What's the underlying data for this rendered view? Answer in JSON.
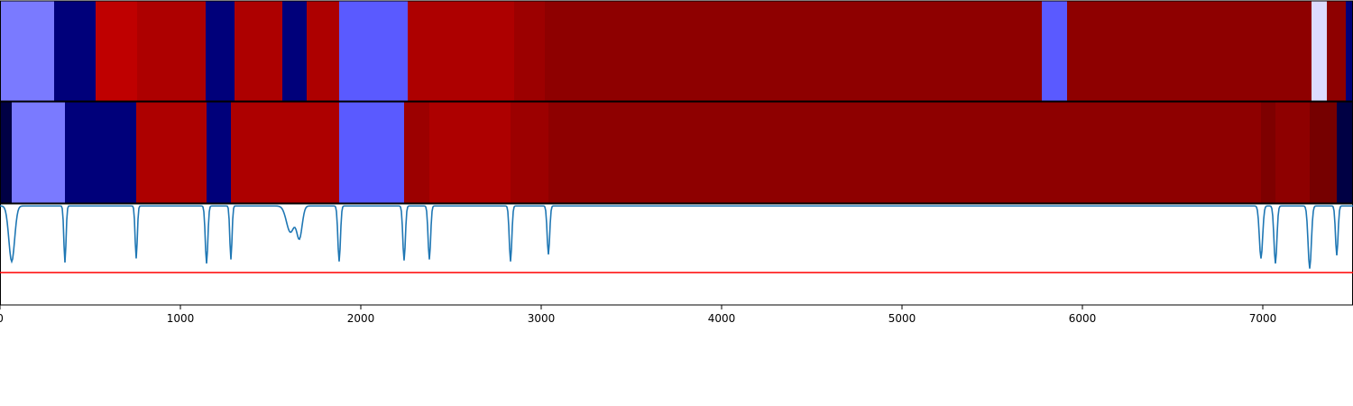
{
  "chart_data": {
    "type": "heatmap",
    "title": "",
    "xlabel": "",
    "ylabel": "",
    "xlim": [
      0,
      7500
    ],
    "xticks": [
      "0",
      "1000",
      "2000",
      "3000",
      "4000",
      "5000",
      "6000",
      "7000"
    ],
    "grid": false,
    "legend": "none",
    "tracks": [
      {
        "segments": [
          {
            "start": 0,
            "end": 300,
            "color": "#7a7aff"
          },
          {
            "start": 300,
            "end": 530,
            "color": "#00007a"
          },
          {
            "start": 530,
            "end": 760,
            "color": "#bf0000"
          },
          {
            "start": 760,
            "end": 1140,
            "color": "#ad0000"
          },
          {
            "start": 1140,
            "end": 1300,
            "color": "#00007a"
          },
          {
            "start": 1300,
            "end": 1565,
            "color": "#ad0000"
          },
          {
            "start": 1565,
            "end": 1700,
            "color": "#00007a"
          },
          {
            "start": 1700,
            "end": 1880,
            "color": "#ad0000"
          },
          {
            "start": 1880,
            "end": 2260,
            "color": "#5a5aff"
          },
          {
            "start": 2260,
            "end": 2850,
            "color": "#ad0000"
          },
          {
            "start": 2850,
            "end": 3020,
            "color": "#9c0000"
          },
          {
            "start": 3020,
            "end": 5775,
            "color": "#8e0000"
          },
          {
            "start": 5775,
            "end": 5915,
            "color": "#5a5aff"
          },
          {
            "start": 5915,
            "end": 7270,
            "color": "#8e0000"
          },
          {
            "start": 7270,
            "end": 7355,
            "color": "#dcdcff"
          },
          {
            "start": 7355,
            "end": 7460,
            "color": "#8e0000"
          },
          {
            "start": 7460,
            "end": 7500,
            "color": "#00007a"
          }
        ]
      },
      {
        "segments": [
          {
            "start": 0,
            "end": 65,
            "color": "#000044"
          },
          {
            "start": 65,
            "end": 360,
            "color": "#7a7aff"
          },
          {
            "start": 360,
            "end": 755,
            "color": "#00007a"
          },
          {
            "start": 755,
            "end": 1145,
            "color": "#ad0000"
          },
          {
            "start": 1145,
            "end": 1280,
            "color": "#00007a"
          },
          {
            "start": 1280,
            "end": 1880,
            "color": "#ad0000"
          },
          {
            "start": 1880,
            "end": 2240,
            "color": "#5a5aff"
          },
          {
            "start": 2240,
            "end": 2380,
            "color": "#9c0000"
          },
          {
            "start": 2380,
            "end": 2830,
            "color": "#ad0000"
          },
          {
            "start": 2830,
            "end": 3040,
            "color": "#9c0000"
          },
          {
            "start": 3040,
            "end": 6990,
            "color": "#8e0000"
          },
          {
            "start": 6990,
            "end": 7070,
            "color": "#7e0000"
          },
          {
            "start": 7070,
            "end": 7260,
            "color": "#8e0000"
          },
          {
            "start": 7260,
            "end": 7410,
            "color": "#760000"
          },
          {
            "start": 7410,
            "end": 7500,
            "color": "#000044"
          }
        ]
      }
    ],
    "line_series": {
      "color": "#1f77b4",
      "baseline": 0.98,
      "dips": [
        {
          "x": 65,
          "depth": 0.55,
          "width": 16
        },
        {
          "x": 360,
          "depth": 0.56,
          "width": 6
        },
        {
          "x": 755,
          "depth": 0.52,
          "width": 6
        },
        {
          "x": 1145,
          "depth": 0.57,
          "width": 7
        },
        {
          "x": 1280,
          "depth": 0.53,
          "width": 6
        },
        {
          "x": 1610,
          "depth": 0.26,
          "width": 22
        },
        {
          "x": 1660,
          "depth": 0.31,
          "width": 15
        },
        {
          "x": 1880,
          "depth": 0.55,
          "width": 7
        },
        {
          "x": 2240,
          "depth": 0.54,
          "width": 7
        },
        {
          "x": 2380,
          "depth": 0.53,
          "width": 7
        },
        {
          "x": 2830,
          "depth": 0.55,
          "width": 7
        },
        {
          "x": 3040,
          "depth": 0.48,
          "width": 7
        },
        {
          "x": 6990,
          "depth": 0.52,
          "width": 9
        },
        {
          "x": 7070,
          "depth": 0.57,
          "width": 8
        },
        {
          "x": 7260,
          "depth": 0.62,
          "width": 9
        },
        {
          "x": 7410,
          "depth": 0.49,
          "width": 7
        }
      ]
    },
    "threshold": {
      "value": 0.32,
      "color": "#ff0000"
    }
  }
}
